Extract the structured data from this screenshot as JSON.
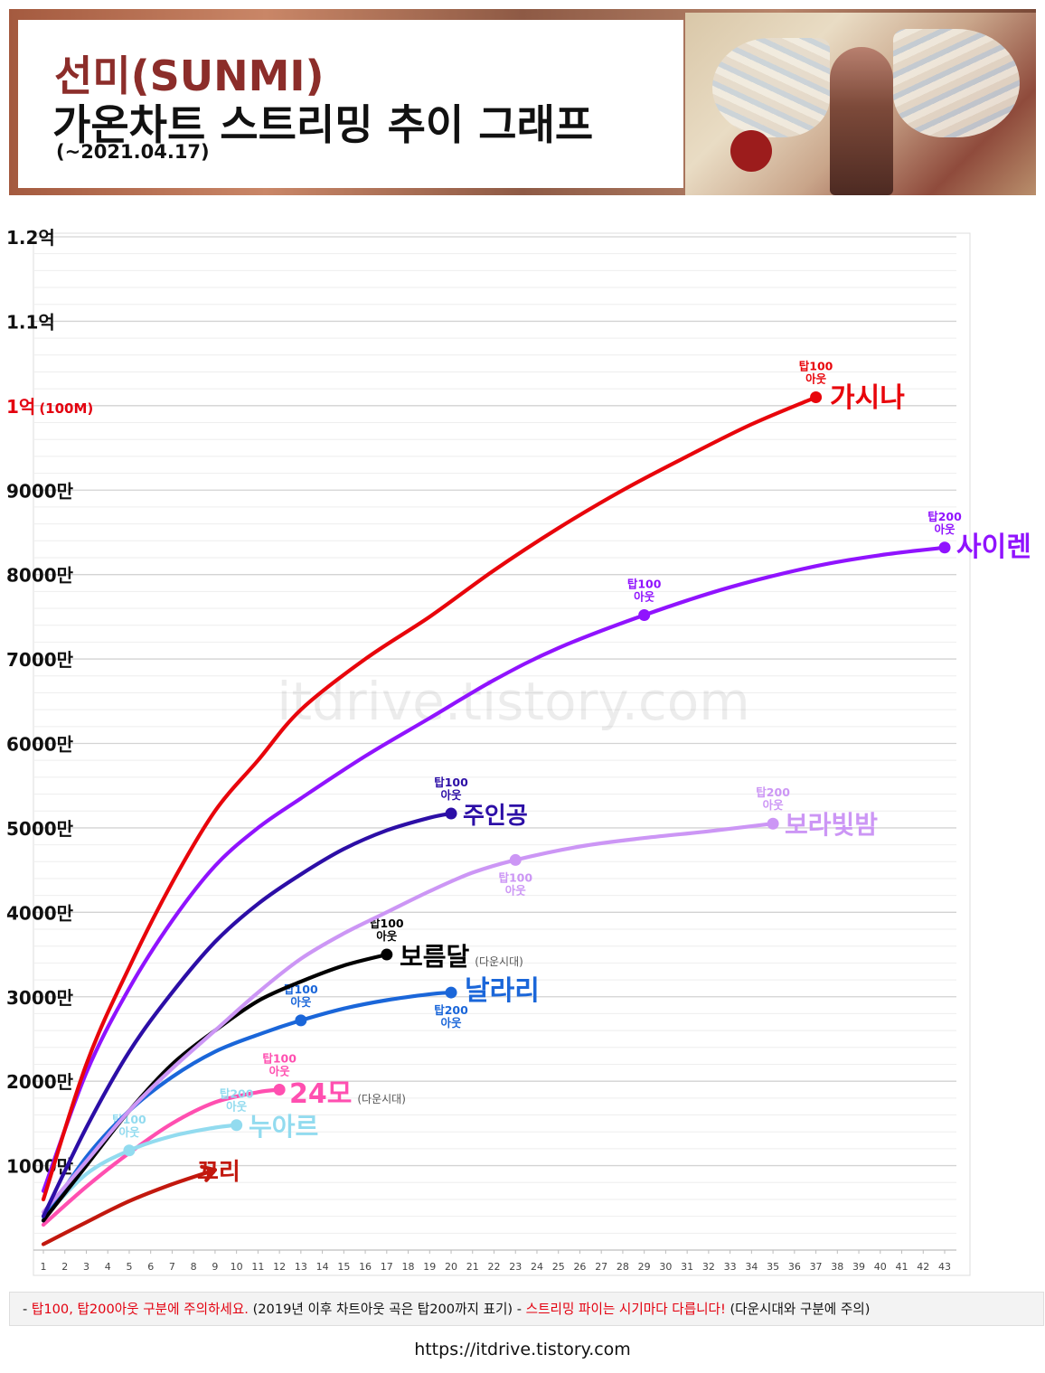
{
  "header": {
    "title_artist": "선미(SUNMI)",
    "title_main": "가온차트 스트리밍 추이 그래프",
    "title_date": "(~2021.04.17)"
  },
  "watermark": "itdrive.tistory.com",
  "footnote": {
    "part1": "- ",
    "part2": "탑100, 탑200아웃 구분에 주의하세요.",
    "part3": " (2019년 이후 차트아웃 곡은 탑200까지 표기)  - ",
    "part4": "스트리밍 파이는 시기마다 다릅니다!",
    "part5": " (다운시대와 구분에 주의)"
  },
  "url": "https://itdrive.tistory.com",
  "chart_data": {
    "type": "line",
    "title": "",
    "xlabel": "",
    "ylabel": "",
    "x_ticks": [
      1,
      2,
      3,
      4,
      5,
      6,
      7,
      8,
      9,
      10,
      11,
      12,
      13,
      14,
      15,
      16,
      17,
      18,
      19,
      20,
      21,
      22,
      23,
      24,
      25,
      26,
      27,
      28,
      29,
      30,
      31,
      32,
      33,
      34,
      35,
      36,
      37,
      38,
      39,
      40,
      41,
      42,
      43
    ],
    "xlim": [
      1,
      43
    ],
    "ylim": [
      0,
      120000000
    ],
    "y_ticks": [
      {
        "value": 10000000,
        "label": "1000만"
      },
      {
        "value": 20000000,
        "label": "2000만"
      },
      {
        "value": 30000000,
        "label": "3000만"
      },
      {
        "value": 40000000,
        "label": "4000만"
      },
      {
        "value": 50000000,
        "label": "5000만"
      },
      {
        "value": 60000000,
        "label": "6000만"
      },
      {
        "value": 70000000,
        "label": "7000만"
      },
      {
        "value": 80000000,
        "label": "8000만"
      },
      {
        "value": 90000000,
        "label": "9000만"
      },
      {
        "value": 100000000,
        "label": "1억",
        "extra": "(100M)",
        "color": "#e3000f"
      },
      {
        "value": 110000000,
        "label": "1.1억"
      },
      {
        "value": 120000000,
        "label": "1.2억"
      }
    ],
    "grid": true,
    "series": [
      {
        "name": "가시나",
        "color": "#e8050b",
        "x": [
          1,
          3,
          5,
          7,
          9,
          11,
          13,
          16,
          19,
          22,
          25,
          28,
          31,
          34,
          37
        ],
        "y": [
          6000000,
          22000000,
          33500000,
          43500000,
          52000000,
          58000000,
          64000000,
          70000000,
          75000000,
          80500000,
          85500000,
          90000000,
          94000000,
          97800000,
          101000000
        ],
        "end_x": 37,
        "end_y": 101000000,
        "end_dot": true,
        "badges": [
          {
            "x": 37,
            "y": 101000000,
            "text": [
              "탑100",
              "아웃"
            ],
            "pos": "above"
          }
        ]
      },
      {
        "name": "사이렌",
        "color": "#9013fe",
        "x": [
          1,
          3,
          5,
          7,
          9,
          11,
          13,
          16,
          19,
          22,
          25,
          29,
          33,
          37,
          40,
          43
        ],
        "y": [
          7000000,
          21000000,
          31000000,
          39000000,
          45500000,
          50000000,
          53500000,
          58500000,
          63000000,
          67500000,
          71300000,
          75200000,
          78500000,
          81000000,
          82300000,
          83200000
        ],
        "end_x": 43,
        "end_y": 83200000,
        "end_dot": true,
        "badges": [
          {
            "x": 29,
            "y": 75200000,
            "text": [
              "탑100",
              "아웃"
            ],
            "pos": "above",
            "dot": true
          },
          {
            "x": 43,
            "y": 83200000,
            "text": [
              "탑200",
              "아웃"
            ],
            "pos": "above"
          }
        ]
      },
      {
        "name": "주인공",
        "color": "#2c0ea6",
        "x": [
          1,
          3,
          5,
          7,
          9,
          11,
          13,
          15,
          17,
          19,
          20
        ],
        "y": [
          4000000,
          14500000,
          23500000,
          30500000,
          36500000,
          41000000,
          44500000,
          47500000,
          49700000,
          51200000,
          51700000
        ],
        "end_x": 20,
        "end_y": 51700000,
        "end_dot": true,
        "badges": [
          {
            "x": 20,
            "y": 51700000,
            "text": [
              "탑100",
              "아웃"
            ],
            "pos": "above"
          }
        ]
      },
      {
        "name": "보라빛밤",
        "color": "#cc96f5",
        "x": [
          1,
          3,
          5,
          7,
          9,
          11,
          13,
          15,
          17,
          19,
          21,
          23,
          26,
          29,
          32,
          35
        ],
        "y": [
          4500000,
          10500000,
          16500000,
          21500000,
          26000000,
          30500000,
          34500000,
          37500000,
          40000000,
          42500000,
          44700000,
          46200000,
          47800000,
          48800000,
          49600000,
          50500000
        ],
        "end_x": 35,
        "end_y": 50500000,
        "end_dot": true,
        "badges": [
          {
            "x": 23,
            "y": 46200000,
            "text": [
              "탑100",
              "아웃"
            ],
            "pos": "below",
            "dot": true
          },
          {
            "x": 35,
            "y": 50500000,
            "text": [
              "탑200",
              "아웃"
            ],
            "pos": "above"
          }
        ]
      },
      {
        "name": "보름달",
        "color": "#000000",
        "suffix": "(다운시대)",
        "x": [
          1,
          3,
          5,
          7,
          9,
          11,
          13,
          15,
          17
        ],
        "y": [
          3500000,
          10000000,
          16500000,
          22000000,
          26000000,
          29500000,
          31800000,
          33700000,
          35000000
        ],
        "end_x": 17,
        "end_y": 35000000,
        "end_dot": true,
        "badges": [
          {
            "x": 17,
            "y": 35000000,
            "text": [
              "탑100",
              "아웃"
            ],
            "pos": "above"
          }
        ]
      },
      {
        "name": "날라리",
        "color": "#1a66d9",
        "x": [
          1,
          3,
          5,
          7,
          9,
          11,
          13,
          15,
          17,
          19,
          20
        ],
        "y": [
          3500000,
          11000000,
          16500000,
          20500000,
          23500000,
          25500000,
          27200000,
          28600000,
          29600000,
          30300000,
          30500000
        ],
        "end_x": 20,
        "end_y": 30500000,
        "end_dot": true,
        "badges": [
          {
            "x": 13,
            "y": 27200000,
            "text": [
              "탑100",
              "아웃"
            ],
            "pos": "above",
            "dot": true
          },
          {
            "x": 20,
            "y": 30500000,
            "text": [
              "탑200",
              "아웃"
            ],
            "pos": "below"
          }
        ]
      },
      {
        "name": "24모",
        "color": "#ff4fb0",
        "suffix": "(다운시대)",
        "x": [
          1,
          3,
          5,
          7,
          9,
          11,
          12
        ],
        "y": [
          3000000,
          7500000,
          11500000,
          15000000,
          17500000,
          18700000,
          19000000
        ],
        "end_x": 12,
        "end_y": 19000000,
        "end_dot": true,
        "badges": [
          {
            "x": 12,
            "y": 19000000,
            "text": [
              "탑100",
              "아웃"
            ],
            "pos": "above"
          }
        ]
      },
      {
        "name": "누아르",
        "color": "#92dbef",
        "x": [
          1,
          3,
          5,
          7,
          9,
          10
        ],
        "y": [
          3800000,
          9000000,
          11800000,
          13500000,
          14500000,
          14800000
        ],
        "end_x": 10,
        "end_y": 14800000,
        "end_dot": true,
        "badges": [
          {
            "x": 5,
            "y": 11800000,
            "text": [
              "탑100",
              "아웃"
            ],
            "pos": "above",
            "dot": true
          },
          {
            "x": 10,
            "y": 14800000,
            "text": [
              "탑200",
              "아웃"
            ],
            "pos": "above-left"
          }
        ]
      },
      {
        "name": "꼬리",
        "color": "#c2180e",
        "x": [
          1,
          3,
          5,
          7,
          9
        ],
        "y": [
          700000,
          3300000,
          5800000,
          7800000,
          9500000
        ],
        "end_x": 9,
        "end_y": 9500000,
        "end_dot": false,
        "arrow": true,
        "badges": []
      }
    ]
  }
}
